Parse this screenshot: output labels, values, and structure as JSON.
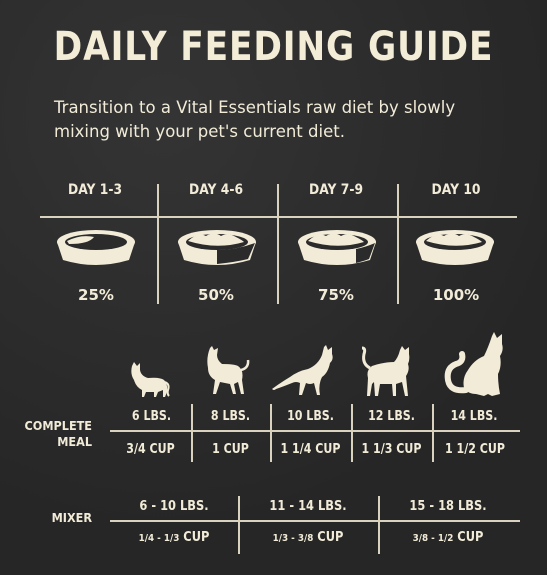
{
  "title": "DAILY FEEDING GUIDE",
  "subtitle": "Transition to a Vital Essentials raw diet by slowly mixing with your pet's current diet.",
  "transition": [
    {
      "day": "DAY 1-3",
      "percent": "25%",
      "fill": 0.25
    },
    {
      "day": "DAY 4-6",
      "percent": "50%",
      "fill": 0.5
    },
    {
      "day": "DAY 7-9",
      "percent": "75%",
      "fill": 0.75
    },
    {
      "day": "DAY 10",
      "percent": "100%",
      "fill": 1.0
    }
  ],
  "complete_meal": {
    "label_line1": "COMPLETE",
    "label_line2": "MEAL",
    "weights": [
      "6 LBS.",
      "8 LBS.",
      "10 LBS.",
      "12 LBS.",
      "14 LBS."
    ],
    "cups": [
      "3/4 CUP",
      "1 CUP",
      "1 1/4 CUP",
      "1 1/3 CUP",
      "1 1/2 CUP"
    ]
  },
  "mixer": {
    "label": "MIXER",
    "weights": [
      "6 - 10 LBS.",
      "11 -  14 LBS.",
      "15 - 18 LBS."
    ],
    "cup_amounts": [
      "1/4 - 1/3",
      "1/3 - 3/8",
      "3/8 - 1/2"
    ],
    "cup_unit": "CUP"
  },
  "icons": [
    "bowl-icon",
    "cat-icon"
  ],
  "colors": {
    "background": "#2b2b2b",
    "text": "#f1ebd8",
    "food": "#2b2b2b"
  }
}
